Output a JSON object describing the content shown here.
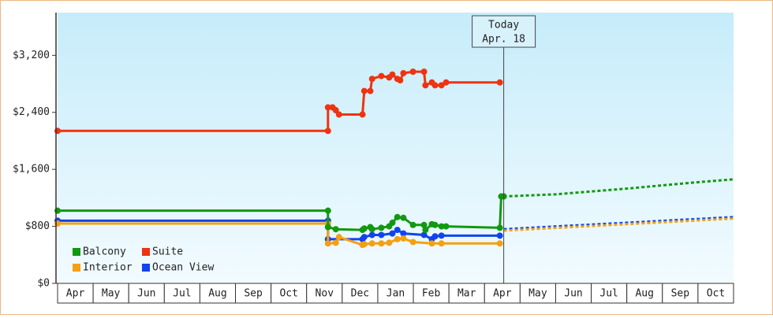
{
  "chart_data": {
    "type": "line",
    "annotation": {
      "x": 12.54,
      "title": "Today",
      "date": "Apr. 18"
    },
    "xlim": [
      0,
      19
    ],
    "xticks": [
      {
        "value": 0.5,
        "label": "Apr"
      },
      {
        "value": 1.5,
        "label": "May"
      },
      {
        "value": 2.5,
        "label": "Jun"
      },
      {
        "value": 3.5,
        "label": "Jul"
      },
      {
        "value": 4.5,
        "label": "Aug"
      },
      {
        "value": 5.5,
        "label": "Sep"
      },
      {
        "value": 6.5,
        "label": "Oct"
      },
      {
        "value": 7.5,
        "label": "Nov"
      },
      {
        "value": 8.5,
        "label": "Dec"
      },
      {
        "value": 9.5,
        "label": "Jan"
      },
      {
        "value": 10.5,
        "label": "Feb"
      },
      {
        "value": 11.5,
        "label": "Mar"
      },
      {
        "value": 12.5,
        "label": "Apr"
      },
      {
        "value": 13.5,
        "label": "May"
      },
      {
        "value": 14.5,
        "label": "Jun"
      },
      {
        "value": 15.5,
        "label": "Jul"
      },
      {
        "value": 16.5,
        "label": "Aug"
      },
      {
        "value": 17.5,
        "label": "Sep"
      },
      {
        "value": 18.5,
        "label": "Oct"
      }
    ],
    "ylim": [
      0,
      3800
    ],
    "yticks": [
      {
        "value": 0,
        "label": "$0"
      },
      {
        "value": 800,
        "label": "$800"
      },
      {
        "value": 1600,
        "label": "$1,600"
      },
      {
        "value": 2400,
        "label": "$2,400"
      },
      {
        "value": 3200,
        "label": "$3,200"
      }
    ],
    "series": [
      {
        "name": "Balcony",
        "color": "#119911",
        "x": [
          0,
          7.6,
          7.6,
          7.82,
          8.57,
          8.62,
          8.79,
          8.84,
          9.1,
          9.32,
          9.41,
          9.55,
          9.72,
          9.99,
          10.3,
          10.34,
          10.52,
          10.61,
          10.79,
          10.92,
          12.43,
          12.47,
          12.54
        ],
        "values": [
          1020,
          1020,
          790,
          760,
          750,
          770,
          790,
          760,
          780,
          800,
          850,
          930,
          920,
          820,
          820,
          750,
          830,
          820,
          800,
          800,
          780,
          1220,
          1220
        ],
        "forecast": {
          "x": [
            12.54,
            14,
            16,
            18,
            19
          ],
          "values": [
            1220,
            1250,
            1330,
            1420,
            1460
          ]
        }
      },
      {
        "name": "Suite",
        "color": "#ee3311",
        "x": [
          0,
          7.6,
          7.6,
          7.73,
          7.82,
          7.91,
          8.57,
          8.62,
          8.79,
          8.84,
          9.1,
          9.32,
          9.41,
          9.55,
          9.63,
          9.72,
          9.99,
          10.3,
          10.34,
          10.52,
          10.61,
          10.79,
          10.92,
          12.43
        ],
        "values": [
          2140,
          2140,
          2470,
          2470,
          2430,
          2370,
          2370,
          2700,
          2700,
          2870,
          2910,
          2890,
          2930,
          2870,
          2850,
          2950,
          2970,
          2970,
          2780,
          2820,
          2780,
          2780,
          2820,
          2820
        ]
      },
      {
        "name": "Interior",
        "color": "#f5a010",
        "x": [
          0,
          7.6,
          7.6,
          7.82,
          7.91,
          8.57,
          8.62,
          8.84,
          9.1,
          9.32,
          9.55,
          9.72,
          9.99,
          10.52,
          10.79,
          12.43
        ],
        "values": [
          840,
          840,
          560,
          570,
          650,
          540,
          550,
          560,
          560,
          570,
          620,
          630,
          580,
          560,
          560,
          560
        ],
        "forecast": {
          "x": [
            12.54,
            19
          ],
          "values": [
            740,
            910
          ]
        }
      },
      {
        "name": "Ocean View",
        "color": "#1144ee",
        "x": [
          0,
          7.6,
          7.6,
          8.57,
          8.62,
          8.84,
          9.1,
          9.41,
          9.55,
          9.72,
          10.3,
          10.52,
          10.61,
          10.79,
          12.43
        ],
        "values": [
          880,
          880,
          620,
          620,
          650,
          680,
          680,
          700,
          750,
          700,
          680,
          620,
          660,
          670,
          670
        ],
        "forecast": {
          "x": [
            12.54,
            19
          ],
          "values": [
            760,
            930
          ]
        }
      }
    ]
  }
}
